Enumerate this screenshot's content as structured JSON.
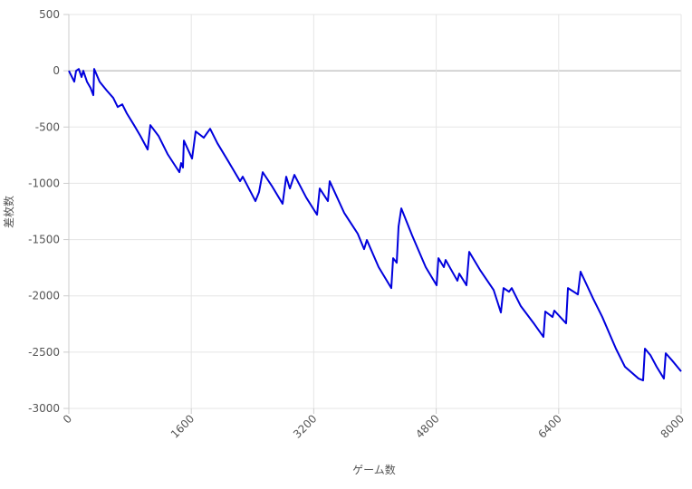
{
  "chart_data": {
    "type": "line",
    "xlabel": "ゲーム数",
    "ylabel": "差枚数",
    "xlim": [
      0,
      8000
    ],
    "xticks": [
      0,
      1600,
      3200,
      4800,
      6400,
      8000
    ],
    "ylim": [
      -3000,
      500
    ],
    "yticks": [
      500,
      0,
      -500,
      -1000,
      -1500,
      -2000,
      -2500,
      -3000
    ],
    "grid": true,
    "series": [
      {
        "color": "#0000dd",
        "x": [
          0,
          71,
          95,
          130,
          166,
          189,
          237,
          284,
          320,
          331,
          402,
          497,
          580,
          639,
          698,
          757,
          852,
          935,
          1030,
          1065,
          1172,
          1290,
          1444,
          1467,
          1491,
          1503,
          1610,
          1657,
          1763,
          1846,
          1941,
          2083,
          2237,
          2272,
          2438,
          2485,
          2533,
          2651,
          2793,
          2840,
          2888,
          2947,
          3101,
          3243,
          3278,
          3385,
          3408,
          3598,
          3775,
          3858,
          3894,
          4048,
          4213,
          4237,
          4284,
          4308,
          4344,
          4486,
          4663,
          4805,
          4829,
          4900,
          4923,
          5077,
          5101,
          5195,
          5231,
          5373,
          5550,
          5645,
          5680,
          5751,
          5787,
          5905,
          6083,
          6201,
          6225,
          6320,
          6343,
          6497,
          6521,
          6651,
          6686,
          6852,
          6970,
          7148,
          7266,
          7444,
          7503,
          7527,
          7598,
          7680,
          7775,
          7799,
          7882,
          8000
        ],
        "values": [
          0,
          -97,
          0,
          16,
          -56,
          0,
          -97,
          -153,
          -217,
          16,
          -97,
          -177,
          -241,
          -322,
          -298,
          -378,
          -483,
          -579,
          -700,
          -483,
          -579,
          -740,
          -901,
          -820,
          -860,
          -620,
          -780,
          -539,
          -595,
          -515,
          -644,
          -804,
          -981,
          -941,
          -1158,
          -1078,
          -901,
          -1022,
          -1182,
          -941,
          -1046,
          -925,
          -1126,
          -1279,
          -1046,
          -1158,
          -981,
          -1263,
          -1448,
          -1585,
          -1504,
          -1745,
          -1931,
          -1665,
          -1706,
          -1384,
          -1223,
          -1464,
          -1745,
          -1906,
          -1665,
          -1745,
          -1681,
          -1866,
          -1802,
          -1906,
          -1609,
          -1770,
          -1947,
          -2148,
          -1931,
          -1963,
          -1931,
          -2091,
          -2252,
          -2365,
          -2139,
          -2188,
          -2131,
          -2244,
          -1931,
          -1987,
          -1785,
          -2027,
          -2188,
          -2469,
          -2630,
          -2735,
          -2751,
          -2469,
          -2526,
          -2630,
          -2735,
          -2510,
          -2574,
          -2671
        ]
      }
    ]
  }
}
